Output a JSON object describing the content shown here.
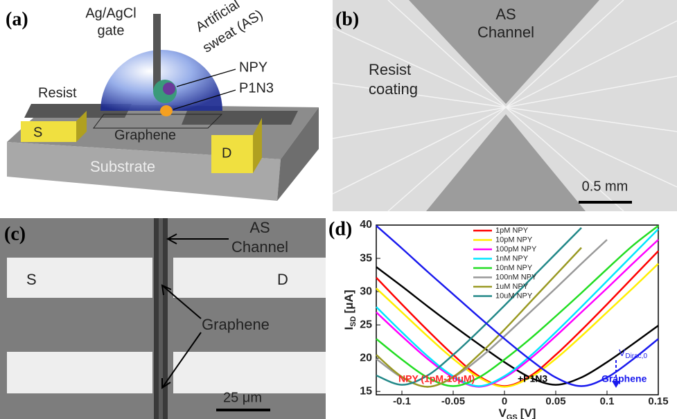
{
  "panel_a": {
    "label": "(a)",
    "gate": [
      "Ag/AgCl",
      "gate"
    ],
    "sweat": [
      "Artificial",
      "sweat (AS)"
    ],
    "npy": "NPY",
    "p1n3": "P1N3",
    "resist": "Resist",
    "source": "S",
    "graphene": "Graphene",
    "drain": "D",
    "substrate": "Substrate"
  },
  "panel_b": {
    "label": "(b)",
    "channel": [
      "AS",
      "Channel"
    ],
    "resist": [
      "Resist",
      "coating"
    ],
    "scale": "0.5 mm"
  },
  "panel_c": {
    "label": "(c)",
    "channel": [
      "AS",
      "Channel"
    ],
    "source": "S",
    "drain": "D",
    "graphene": "Graphene",
    "scale": "25 μm"
  },
  "chart_data": {
    "type": "line",
    "panel_label": "(d)",
    "x_label": {
      "text": "V",
      "sub": "GS",
      "unit": "[V]"
    },
    "y_label": {
      "text": "I",
      "sub": "SD",
      "unit": "[μA]"
    },
    "x": [
      -0.125,
      -0.1,
      -0.075,
      -0.05,
      -0.025,
      0,
      0.025,
      0.05,
      0.075,
      0.1,
      0.125,
      0.15
    ],
    "xlim": [
      -0.125,
      0.15
    ],
    "xticks": [
      -0.1,
      -0.05,
      0,
      0.05,
      0.1,
      0.15
    ],
    "ylim": [
      14.5,
      40
    ],
    "yticks": [
      15,
      20,
      25,
      30,
      35,
      40
    ],
    "series": [
      {
        "color": "#000000",
        "values": [
          33.7,
          30.8,
          27.8,
          24.9,
          22.1,
          19.4,
          17.1,
          16,
          17.1,
          19.4,
          22.1,
          24.9
        ]
      },
      {
        "name": "1pM NPY",
        "color": "#ff0000",
        "values": [
          32.1,
          28.1,
          24.2,
          20.5,
          17.3,
          15.8,
          17.3,
          20.5,
          24.2,
          28.1,
          32.1,
          36.1
        ]
      },
      {
        "name": "10pM NPY",
        "color": "#ffee00",
        "values": [
          30.5,
          26.9,
          23.3,
          19.9,
          17.1,
          15.7,
          17.1,
          19.9,
          23.3,
          26.9,
          30.5,
          34.2
        ]
      },
      {
        "name": "100pM NPY",
        "color": "#ff00ff",
        "values": [
          26.9,
          23.3,
          19.9,
          17.1,
          15.7,
          17.1,
          19.9,
          23.3,
          26.9,
          30.5,
          34.2,
          37.8
        ]
      },
      {
        "name": "1nM NPY",
        "color": "#00e5ff",
        "values": [
          27.7,
          23.9,
          20.3,
          17.3,
          15.8,
          17.3,
          20.3,
          23.9,
          27.7,
          31.6,
          35.5,
          39.4
        ]
      },
      {
        "name": "10nM NPY",
        "color": "#22dd22",
        "values": [
          22.9,
          19.8,
          17.1,
          15.8,
          17.1,
          19.8,
          22.9,
          26.3,
          29.8,
          33.4,
          36.9,
          39.9
        ]
      },
      {
        "name": "100nM NPY",
        "color": "#999999",
        "values": [
          19.9,
          17.1,
          15.7,
          17.1,
          19.9,
          23.3,
          26.9,
          30.5,
          34.2,
          37.8,
          null,
          null
        ]
      },
      {
        "name": "1uM NPY",
        "color": "#999922",
        "values": [
          20.5,
          17.2,
          15.7,
          17.2,
          20.5,
          24.3,
          28.4,
          32.5,
          36.6,
          null,
          null,
          null
        ]
      },
      {
        "name": "10uM NPY",
        "color": "#228888",
        "values": [
          17.4,
          16,
          17.4,
          20.5,
          24.1,
          27.9,
          31.8,
          35.7,
          39.6,
          null,
          null,
          null
        ]
      },
      {
        "color": "#1a1aee",
        "values": [
          39.9,
          36.5,
          33.0,
          29.6,
          26.2,
          22.9,
          19.8,
          17.1,
          15.8,
          17.1,
          19.8,
          22.9
        ]
      }
    ],
    "annotations": [
      {
        "text": "NPY (1pM-10μM)",
        "color": "#ff2222"
      },
      {
        "text": "+P1N3",
        "color": "#000000"
      },
      {
        "text": "Graphene",
        "color": "#1a1aee"
      }
    ],
    "dirac_label": {
      "text": "V",
      "sub": "Dirac,0",
      "color": "#1a1aee"
    }
  }
}
